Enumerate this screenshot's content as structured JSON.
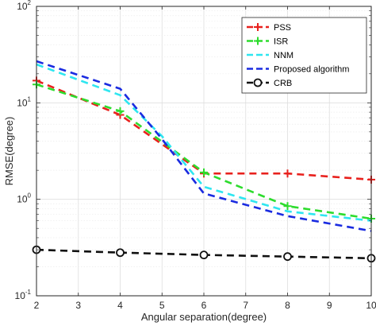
{
  "chart_data": {
    "type": "line",
    "xlabel": "Angular separation(degree)",
    "ylabel": "RMSE(degree)",
    "xlim": [
      2,
      10
    ],
    "ylim": [
      0.1,
      100
    ],
    "yscale": "log",
    "grid": true,
    "legend_position": "top-right",
    "x_ticks": [
      "2",
      "3",
      "4",
      "5",
      "6",
      "7",
      "8",
      "9",
      "10"
    ],
    "y_ticks": [
      {
        "value": 0.1,
        "base": "10",
        "exp": "-1"
      },
      {
        "value": 1,
        "base": "10",
        "exp": "0"
      },
      {
        "value": 10,
        "base": "10",
        "exp": "1"
      },
      {
        "value": 100,
        "base": "10",
        "exp": "2"
      }
    ],
    "series": [
      {
        "name": "PSS",
        "color": "#e8211d",
        "marker": "plus",
        "x": [
          2,
          4,
          6,
          8,
          10
        ],
        "values": [
          17,
          7.5,
          1.85,
          1.85,
          1.6
        ]
      },
      {
        "name": "ISR",
        "color": "#2ddc2d",
        "marker": "plus",
        "x": [
          2,
          4,
          6,
          8,
          10
        ],
        "values": [
          15.5,
          8.2,
          1.9,
          0.85,
          0.63
        ]
      },
      {
        "name": "NNM",
        "color": "#2ee6f0",
        "marker": "none",
        "x": [
          2,
          4,
          5,
          6,
          8,
          10
        ],
        "values": [
          25,
          12,
          4.5,
          1.35,
          0.75,
          0.6
        ]
      },
      {
        "name": "Proposed algorithm",
        "color": "#1a2be0",
        "marker": "none",
        "x": [
          2,
          4,
          5,
          6,
          8,
          10
        ],
        "values": [
          27,
          14,
          4.2,
          1.15,
          0.67,
          0.47
        ]
      },
      {
        "name": "CRB",
        "color": "#111111",
        "marker": "circle",
        "x": [
          2,
          4,
          6,
          8,
          10
        ],
        "values": [
          0.3,
          0.28,
          0.265,
          0.255,
          0.245
        ]
      }
    ]
  }
}
